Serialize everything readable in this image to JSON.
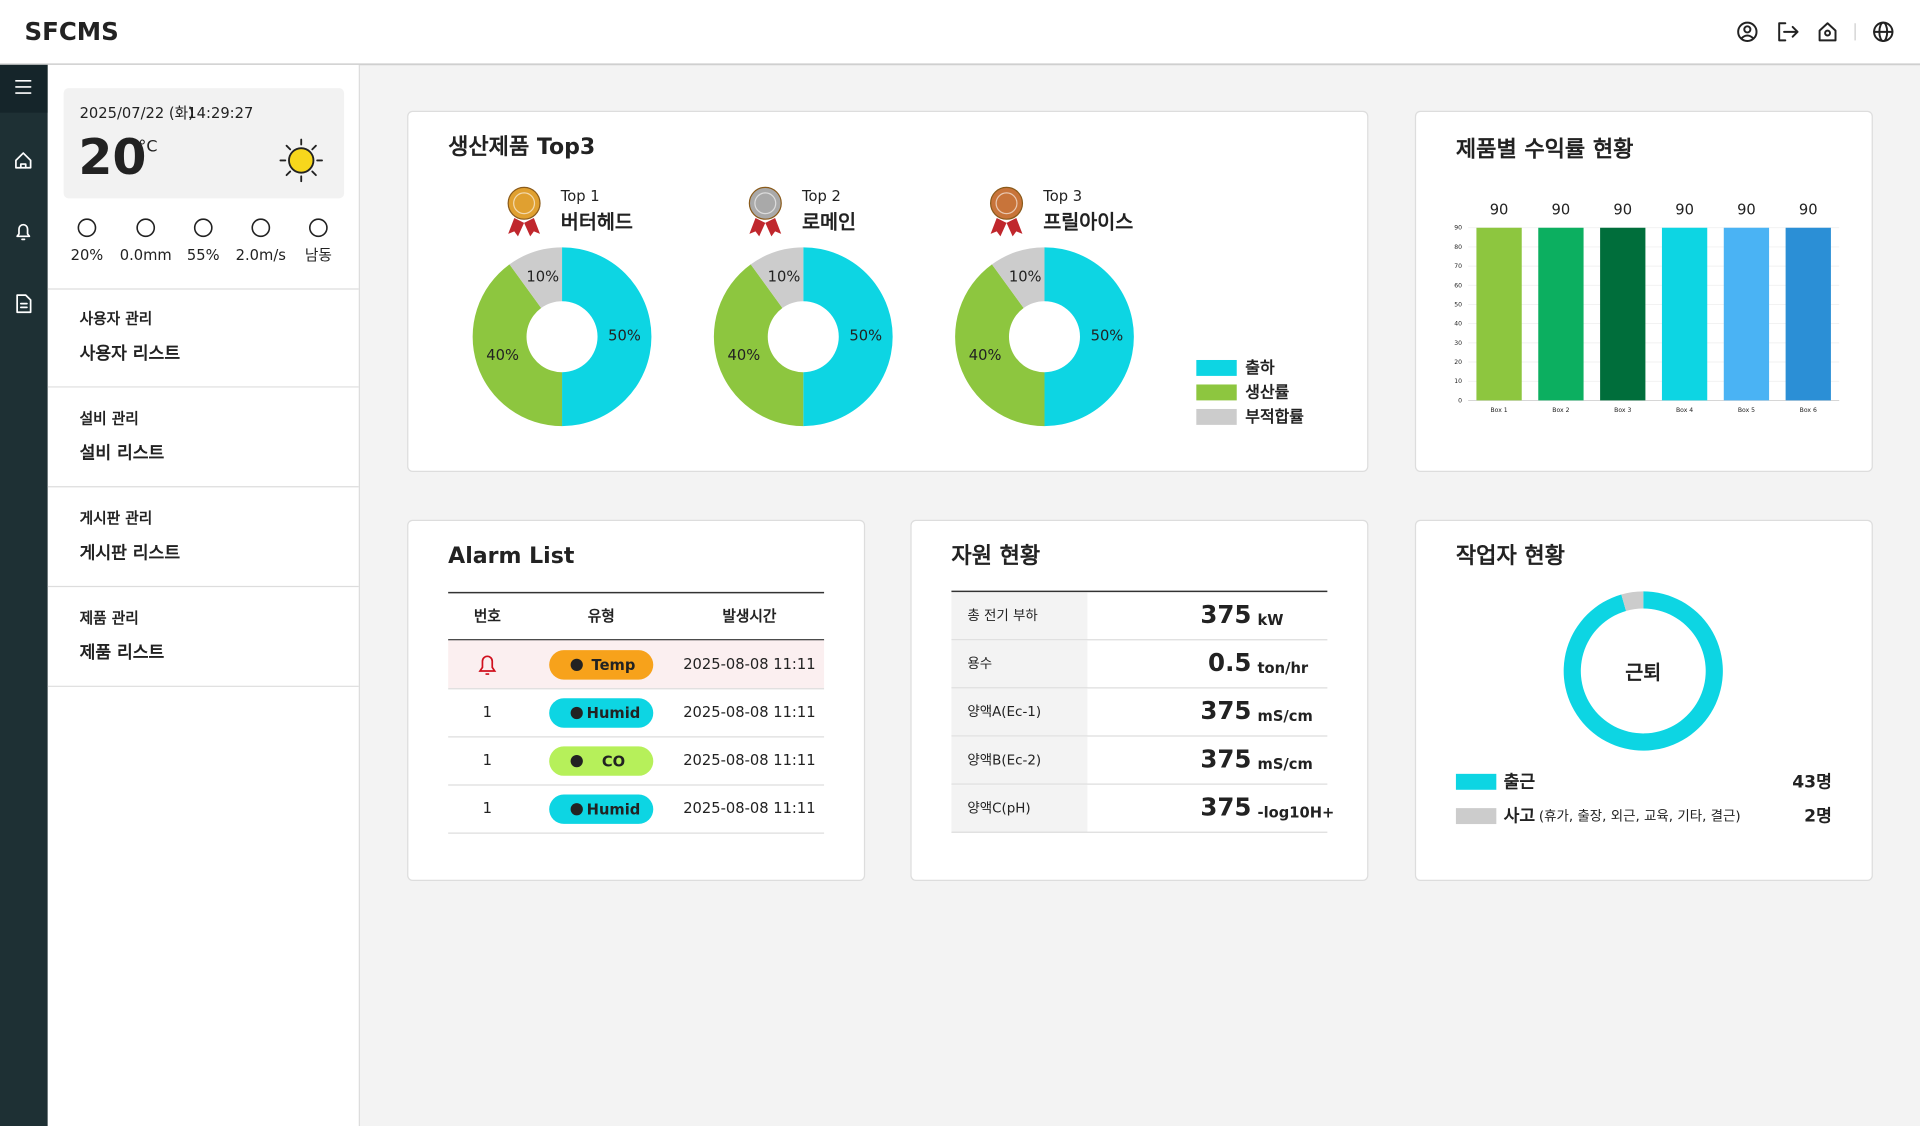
{
  "header": {
    "title": "SFCMS"
  },
  "weather": {
    "date": "2025/07/22 (화)",
    "time": "14:29:27",
    "temperature": "20",
    "unit": "°C",
    "stats": [
      "20%",
      "0.0mm",
      "55%",
      "2.0m/s",
      "남동"
    ]
  },
  "menu": [
    {
      "group": "사용자 관리",
      "item": "사용자 리스트"
    },
    {
      "group": "설비 관리",
      "item": "설비 리스트"
    },
    {
      "group": "게시판 관리",
      "item": "게시판 리스트"
    },
    {
      "group": "제품 관리",
      "item": "제품 리스트"
    }
  ],
  "chart_data": [
    {
      "type": "pie",
      "title": "생산제품 Top3",
      "categories": [
        "출하",
        "생산률",
        "부적합률"
      ],
      "colors": [
        "#0dd5e3",
        "#8dc63f",
        "#cccccc"
      ],
      "series": [
        {
          "rank": "Top 1",
          "name": "버터헤드",
          "values": [
            50,
            40,
            10
          ],
          "value_labels": [
            "50%",
            "40%",
            "10%"
          ]
        },
        {
          "rank": "Top 2",
          "name": "로메인",
          "values": [
            50,
            40,
            10
          ],
          "value_labels": [
            "50%",
            "40%",
            "10%"
          ]
        },
        {
          "rank": "Top 3",
          "name": "프릴아이스",
          "values": [
            50,
            40,
            10
          ],
          "value_labels": [
            "50%",
            "40%",
            "10%"
          ]
        }
      ]
    },
    {
      "type": "bar",
      "title": "제품별 수익률 현황",
      "categories": [
        "Box 1",
        "Box 2",
        "Box 3",
        "Box 4",
        "Box 5",
        "Box 6"
      ],
      "values": [
        90,
        90,
        90,
        90,
        90,
        90
      ],
      "colors": [
        "#8dc63f",
        "#0caf60",
        "#006e3b",
        "#0dd5e3",
        "#4ab3f4",
        "#2b8fd6"
      ],
      "ylim": [
        0,
        90
      ],
      "yticks": [
        0,
        10,
        20,
        30,
        40,
        50,
        60,
        70,
        80,
        90
      ],
      "grid": true
    },
    {
      "type": "donut",
      "title": "작업자 현황",
      "center_label": "근퇴",
      "categories": [
        "출근",
        "사고"
      ],
      "notes": [
        null,
        "(휴가, 출장, 외근, 교육, 기타, 결근)"
      ],
      "values": [
        43,
        2
      ],
      "value_labels": [
        "43명",
        "2명"
      ],
      "colors": [
        "#0dd5e3",
        "#cccccc"
      ]
    }
  ],
  "alarms": {
    "title": "Alarm List",
    "columns": [
      "번호",
      "유형",
      "발생시간"
    ],
    "rows": [
      {
        "type": "Temp",
        "time": "2025-08-08 11:11"
      },
      {
        "no": "1",
        "type": "Humid",
        "time": "2025-08-08 11:11"
      },
      {
        "no": "1",
        "type": "CO",
        "time": "2025-08-08 11:11"
      },
      {
        "no": "1",
        "type": "Humid",
        "time": "2025-08-08 11:11"
      }
    ]
  },
  "resources": {
    "title": "자원 현황",
    "rows": [
      {
        "label": "총 전기 부하",
        "value": "375",
        "unit": "kW"
      },
      {
        "label": "용수",
        "value": "0.5",
        "unit": "ton/hr"
      },
      {
        "label": "양액A(Ec-1)",
        "value": "375",
        "unit": "mS/cm"
      },
      {
        "label": "양액B(Ec-2)",
        "value": "375",
        "unit": "mS/cm"
      },
      {
        "label": "양액C(pH)",
        "value": "375",
        "unit": "-log10H+"
      }
    ]
  }
}
